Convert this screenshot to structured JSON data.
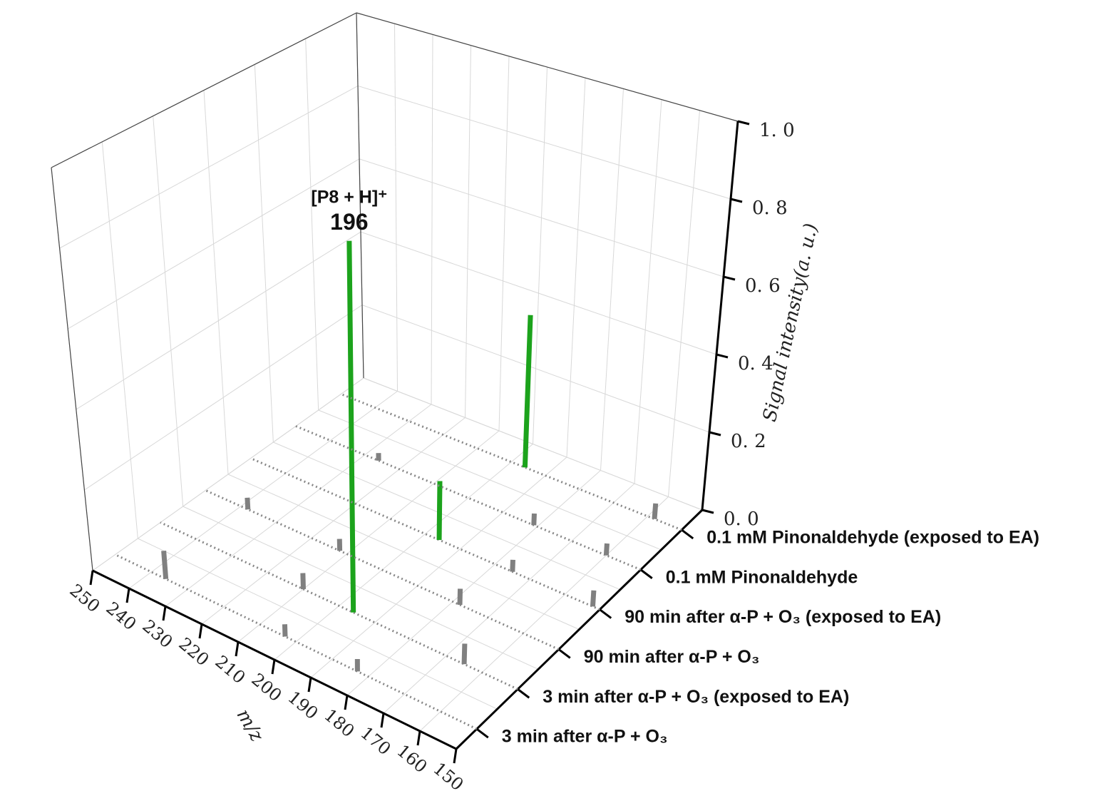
{
  "chart_data": {
    "type": "bar3d",
    "xlabel": "m/z",
    "zlabel": "Signal intensity(a. u.)",
    "xlim": [
      150,
      250
    ],
    "xticks": [
      150,
      160,
      170,
      180,
      190,
      200,
      210,
      220,
      230,
      240,
      250
    ],
    "zlim": [
      0,
      1
    ],
    "zticks": [
      {
        "value": 0,
        "label": "0. 0"
      },
      {
        "value": 0.2,
        "label": "0. 2"
      },
      {
        "value": 0.4,
        "label": "0. 4"
      },
      {
        "value": 0.6,
        "label": "0. 6"
      },
      {
        "value": 0.8,
        "label": "0. 8"
      },
      {
        "value": 1,
        "label": "1. 0"
      }
    ],
    "grid": true,
    "annotations": [
      {
        "text": "[P8 + H]⁺",
        "series": 1,
        "x": 196
      },
      {
        "text": "196",
        "series": 1,
        "x": 196
      }
    ],
    "series": [
      {
        "name": "3 min after α-P + O₃",
        "x": [
          236,
          203,
          183
        ],
        "values": [
          0.07,
          0.03,
          0.03
        ],
        "colors": [
          "#808080",
          "#808080",
          "#808080"
        ]
      },
      {
        "name": "3 min after α-P + O₃ (exposed to EA)",
        "x": [
          196,
          165,
          210
        ],
        "values": [
          0.92,
          0.05,
          0.04
        ],
        "colors": [
          "#1ca31c",
          "#808080",
          "#808080"
        ]
      },
      {
        "name": "90 min after α-P + O₃",
        "x": [
          238,
          212,
          178
        ],
        "values": [
          0.03,
          0.03,
          0.04
        ],
        "colors": [
          "#808080",
          "#808080",
          "#808080"
        ]
      },
      {
        "name": "90 min after α-P + O₃ (exposed to EA)",
        "x": [
          196,
          175,
          152
        ],
        "values": [
          0.15,
          0.03,
          0.04
        ],
        "colors": [
          "#1ca31c",
          "#808080",
          "#808080"
        ]
      },
      {
        "name": "0.1 mM Pinonaldehyde",
        "x": [
          226,
          181,
          160
        ],
        "values": [
          0.02,
          0.03,
          0.03
        ],
        "colors": [
          "#808080",
          "#808080",
          "#808080"
        ]
      },
      {
        "name": "0.1 mM Pinonaldehyde (exposed to EA)",
        "x": [
          196,
          158
        ],
        "values": [
          0.4,
          0.04
        ],
        "colors": [
          "#1ca31c",
          "#808080"
        ]
      }
    ]
  }
}
